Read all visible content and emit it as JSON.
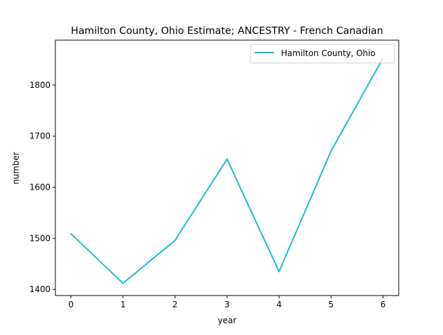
{
  "chart_data": {
    "type": "line",
    "title": "Hamilton County, Ohio Estimate; ANCESTRY - French Canadian",
    "xlabel": "year",
    "ylabel": "number",
    "x": [
      0,
      1,
      2,
      3,
      4,
      5,
      6
    ],
    "xticks": [
      "0",
      "1",
      "2",
      "3",
      "4",
      "5",
      "6"
    ],
    "xlim": [
      -0.3,
      6.3
    ],
    "yticks": [
      "1400",
      "1500",
      "1600",
      "1700",
      "1800"
    ],
    "ylim": [
      1388,
      1888
    ],
    "grid": false,
    "legend_position": "top-right",
    "series": [
      {
        "name": "Hamilton County, Ohio",
        "color": "#17becf",
        "values": [
          1509,
          1412,
          1496,
          1655,
          1435,
          1671,
          1853
        ]
      }
    ]
  }
}
